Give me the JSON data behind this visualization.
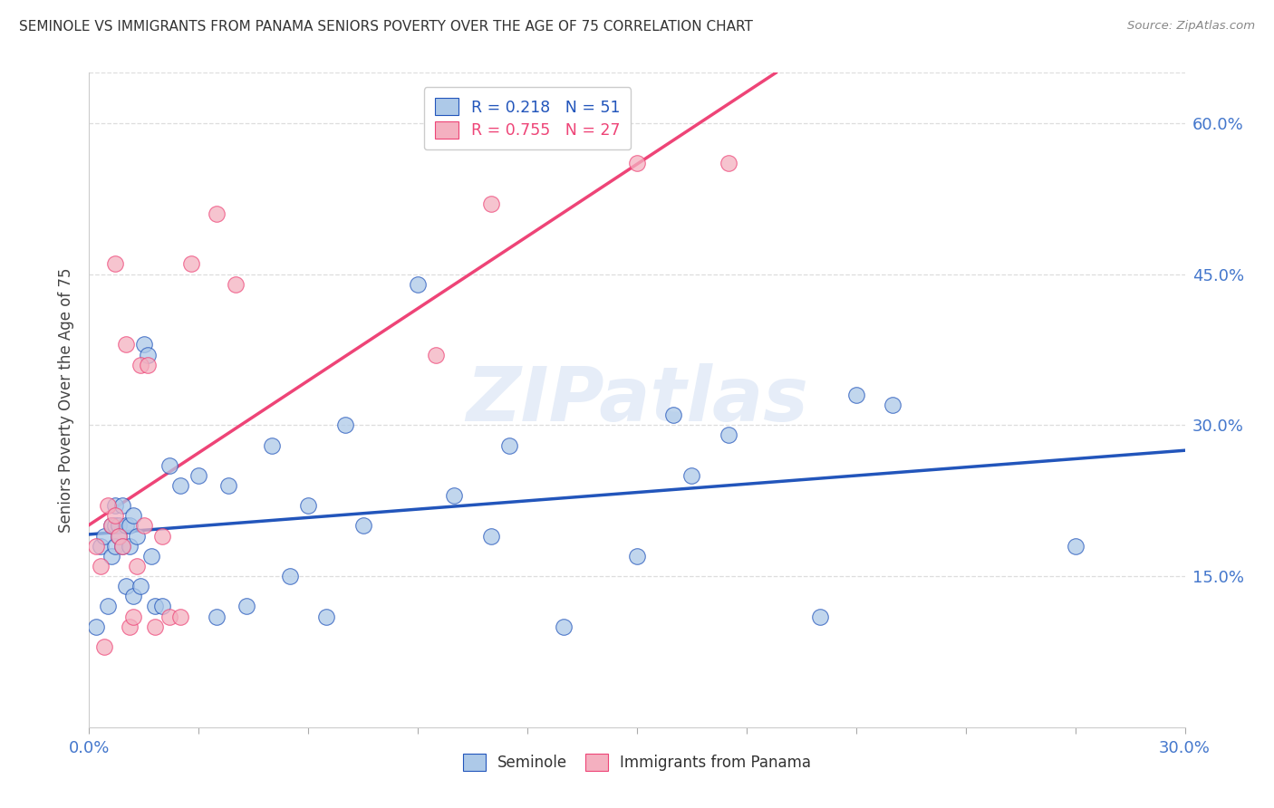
{
  "title": "SEMINOLE VS IMMIGRANTS FROM PANAMA SENIORS POVERTY OVER THE AGE OF 75 CORRELATION CHART",
  "source": "Source: ZipAtlas.com",
  "ylabel": "Seniors Poverty Over the Age of 75",
  "R_seminole": 0.218,
  "N_seminole": 51,
  "R_panama": 0.755,
  "N_panama": 27,
  "legend1_label": "Seminole",
  "legend2_label": "Immigrants from Panama",
  "seminole_color": "#adc9e8",
  "panama_color": "#f4b0c0",
  "trendline_seminole_color": "#2255bb",
  "trendline_panama_color": "#ee4477",
  "xlim": [
    0.0,
    0.3
  ],
  "ylim": [
    0.0,
    0.65
  ],
  "yticks": [
    0.15,
    0.3,
    0.45,
    0.6
  ],
  "ytick_labels": [
    "15.0%",
    "30.0%",
    "45.0%",
    "60.0%"
  ],
  "xticks": [
    0.0,
    0.03,
    0.06,
    0.09,
    0.12,
    0.15,
    0.18,
    0.21,
    0.24,
    0.27,
    0.3
  ],
  "xtick_labels": [
    "0.0%",
    "",
    "",
    "",
    "",
    "",
    "",
    "",
    "",
    "",
    "30.0%"
  ],
  "seminole_x": [
    0.002,
    0.003,
    0.004,
    0.005,
    0.006,
    0.006,
    0.007,
    0.007,
    0.007,
    0.008,
    0.008,
    0.009,
    0.009,
    0.01,
    0.01,
    0.011,
    0.011,
    0.012,
    0.012,
    0.013,
    0.014,
    0.015,
    0.016,
    0.017,
    0.018,
    0.02,
    0.022,
    0.025,
    0.03,
    0.035,
    0.038,
    0.043,
    0.05,
    0.055,
    0.06,
    0.065,
    0.07,
    0.075,
    0.09,
    0.1,
    0.11,
    0.115,
    0.13,
    0.15,
    0.16,
    0.165,
    0.175,
    0.2,
    0.21,
    0.22,
    0.27
  ],
  "seminole_y": [
    0.1,
    0.18,
    0.19,
    0.12,
    0.2,
    0.17,
    0.2,
    0.22,
    0.18,
    0.2,
    0.19,
    0.18,
    0.22,
    0.2,
    0.14,
    0.18,
    0.2,
    0.13,
    0.21,
    0.19,
    0.14,
    0.38,
    0.37,
    0.17,
    0.12,
    0.12,
    0.26,
    0.24,
    0.25,
    0.11,
    0.24,
    0.12,
    0.28,
    0.15,
    0.22,
    0.11,
    0.3,
    0.2,
    0.44,
    0.23,
    0.19,
    0.28,
    0.1,
    0.17,
    0.31,
    0.25,
    0.29,
    0.11,
    0.33,
    0.32,
    0.18
  ],
  "panama_x": [
    0.002,
    0.003,
    0.004,
    0.005,
    0.006,
    0.007,
    0.007,
    0.008,
    0.009,
    0.01,
    0.011,
    0.012,
    0.013,
    0.014,
    0.015,
    0.016,
    0.018,
    0.02,
    0.022,
    0.025,
    0.028,
    0.035,
    0.04,
    0.095,
    0.11,
    0.15,
    0.175
  ],
  "panama_y": [
    0.18,
    0.16,
    0.08,
    0.22,
    0.2,
    0.21,
    0.46,
    0.19,
    0.18,
    0.38,
    0.1,
    0.11,
    0.16,
    0.36,
    0.2,
    0.36,
    0.1,
    0.19,
    0.11,
    0.11,
    0.46,
    0.51,
    0.44,
    0.37,
    0.52,
    0.56,
    0.56
  ],
  "watermark": "ZIPatlas",
  "background_color": "#ffffff",
  "grid_color": "#dddddd"
}
